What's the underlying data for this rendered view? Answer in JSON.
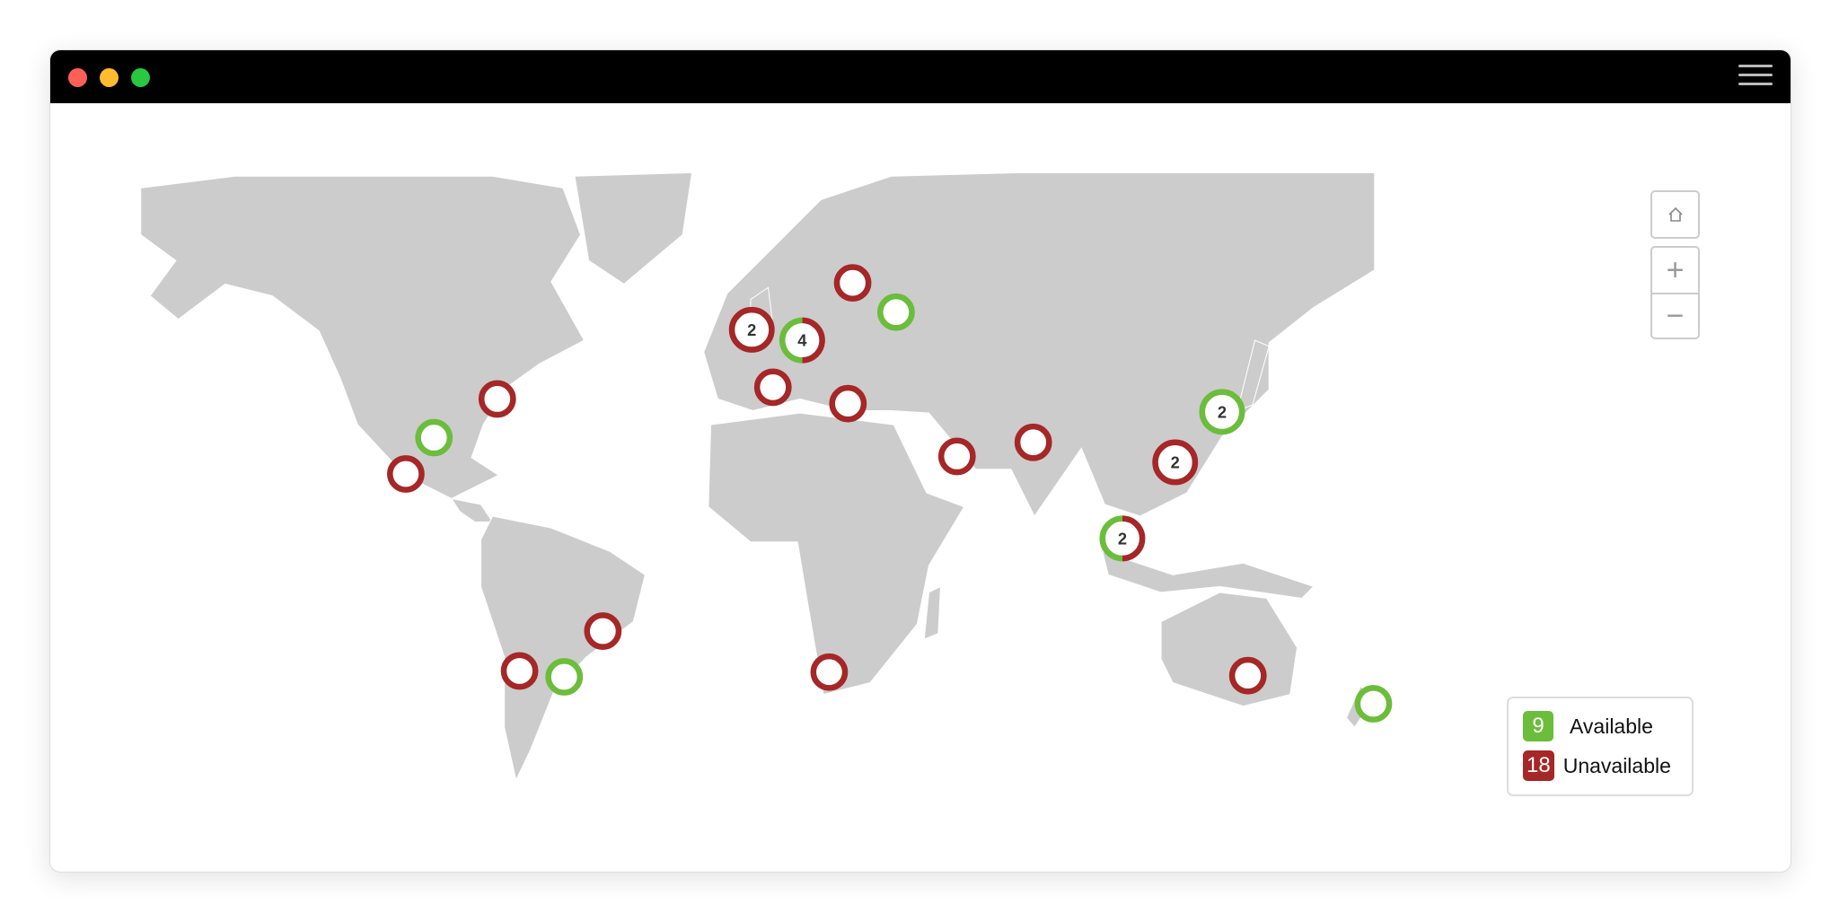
{
  "window": {
    "traffic_lights": [
      "#ff5f57",
      "#febc2e",
      "#28c840"
    ],
    "menu_icon": "hamburger-icon"
  },
  "controls": {
    "home_icon": "home-icon",
    "zoom_in": "+",
    "zoom_out": "−"
  },
  "colors": {
    "available": "#6bbd3b",
    "unavailable": "#a52727",
    "land": "#cccccc"
  },
  "legend": {
    "available": {
      "count": "9",
      "label": "Available"
    },
    "unavailable": {
      "count": "18",
      "label": "Unavailable"
    }
  },
  "markers": [
    {
      "region": "Scandinavia",
      "available": 0,
      "unavailable": 1
    },
    {
      "region": "Eastern Europe",
      "available": 1,
      "unavailable": 0
    },
    {
      "region": "UK",
      "available": 0,
      "unavailable": 2,
      "label": "2"
    },
    {
      "region": "Central Europe",
      "available": 2,
      "unavailable": 2,
      "label": "4"
    },
    {
      "region": "Spain",
      "available": 0,
      "unavailable": 1
    },
    {
      "region": "Eastern Mediterranean",
      "available": 0,
      "unavailable": 1
    },
    {
      "region": "US East",
      "available": 0,
      "unavailable": 1
    },
    {
      "region": "US South",
      "available": 1,
      "unavailable": 0
    },
    {
      "region": "Mexico",
      "available": 0,
      "unavailable": 1
    },
    {
      "region": "Middle East",
      "available": 0,
      "unavailable": 1
    },
    {
      "region": "India",
      "available": 0,
      "unavailable": 1
    },
    {
      "region": "Japan",
      "available": 2,
      "unavailable": 0,
      "label": "2"
    },
    {
      "region": "Hong Kong",
      "available": 0,
      "unavailable": 2,
      "label": "2"
    },
    {
      "region": "Singapore",
      "available": 1,
      "unavailable": 1,
      "label": "2"
    },
    {
      "region": "Brazil",
      "available": 0,
      "unavailable": 1
    },
    {
      "region": "Chile",
      "available": 0,
      "unavailable": 1
    },
    {
      "region": "Argentina",
      "available": 1,
      "unavailable": 0
    },
    {
      "region": "South Africa",
      "available": 0,
      "unavailable": 1
    },
    {
      "region": "Australia",
      "available": 0,
      "unavailable": 1
    },
    {
      "region": "New Zealand",
      "available": 1,
      "unavailable": 0
    }
  ]
}
